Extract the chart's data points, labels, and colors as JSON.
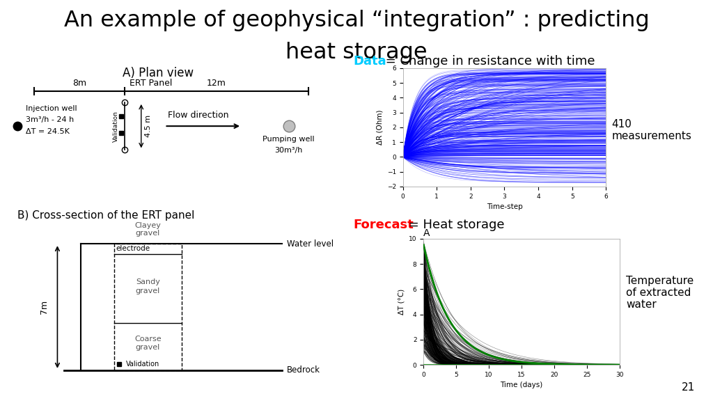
{
  "title_line1": "An example of geophysical “integration” : predicting",
  "title_line2": "heat storage",
  "title_fontsize": 23,
  "background_color": "#ffffff",
  "plan_view_title": "A) Plan view",
  "cross_section_title": "B) Cross-section of the ERT panel",
  "data_label": "Data",
  "data_label_color": "#00ccff",
  "data_text": " = Change in resistance with time",
  "forecast_label": "Forecast",
  "forecast_label_color": "#ff0000",
  "forecast_text": " = Heat storage",
  "measurements_text": "410\nmeasurements",
  "temp_text": "Temperature\nof extracted\nwater",
  "page_number": "21",
  "plot1_xlabel": "Time-step",
  "plot1_ylabel": "ΔR (Ohm)",
  "plot1_xlim": [
    0,
    6
  ],
  "plot1_ylim": [
    -2,
    6
  ],
  "plot1_xticks": [
    0,
    1,
    2,
    3,
    4,
    5,
    6
  ],
  "plot1_yticks": [
    -2,
    -1,
    0,
    1,
    2,
    3,
    4,
    5,
    6
  ],
  "plot2_xlabel": "Time (days)",
  "plot2_ylabel": "ΔT (°C)",
  "plot2_xlim": [
    0,
    30
  ],
  "plot2_ylim": [
    0,
    10
  ],
  "plot2_xticks": [
    0,
    5,
    10,
    15,
    20,
    25,
    30
  ],
  "plot2_yticks": [
    0,
    2,
    4,
    6,
    8,
    10
  ],
  "plot2_title": "A"
}
